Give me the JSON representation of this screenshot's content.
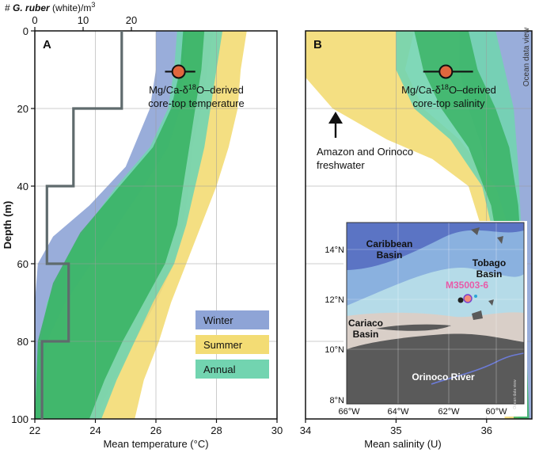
{
  "chart_data": [
    {
      "type": "area",
      "panel_label": "A",
      "xlabel": "Mean temperature (°C)",
      "ylabel": "Depth (m)",
      "top_axis_label": {
        "prefix": "# ",
        "italic": "G. ruber",
        "suffix": " (white)/m",
        "sup": "3"
      },
      "xlim": [
        22,
        30
      ],
      "ylim": [
        0,
        100
      ],
      "y_inverted": true,
      "grid": true,
      "x_ticks": [
        "22",
        "24",
        "26",
        "28",
        "30"
      ],
      "y_ticks": [
        "0",
        "20",
        "40",
        "60",
        "80",
        "100"
      ],
      "top_ticks": [
        "0",
        "10",
        "20"
      ],
      "top_lim": [
        0,
        20
      ],
      "annotation": {
        "line1": "Mg/Ca-δ18O–derived",
        "line1_parts": [
          "Mg/Ca-δ",
          "18",
          "O–derived"
        ],
        "line2": "core-top temperature"
      },
      "core_top_point": {
        "x": 26.75,
        "y": 10.5,
        "x_err": [
          26.3,
          27.3
        ]
      },
      "legend": {
        "placement": "bottom-right",
        "entries": [
          "Winter",
          "Summer",
          "Annual"
        ]
      },
      "series": [
        {
          "name": "Winter",
          "color": "#8ea4d6",
          "left": [
            [
              26.0,
              0
            ],
            [
              26.0,
              10
            ],
            [
              25.8,
              20
            ],
            [
              25.0,
              35
            ],
            [
              23.8,
              45
            ],
            [
              22.6,
              53
            ],
            [
              22.1,
              60
            ],
            [
              22.0,
              70
            ],
            [
              22.0,
              100
            ]
          ],
          "right": [
            [
              27.9,
              0
            ],
            [
              27.7,
              10
            ],
            [
              27.5,
              20
            ],
            [
              27.2,
              30
            ],
            [
              27.1,
              40
            ],
            [
              26.9,
              50
            ],
            [
              26.6,
              60
            ],
            [
              26.0,
              70
            ],
            [
              25.3,
              80
            ],
            [
              24.6,
              90
            ],
            [
              24.0,
              100
            ]
          ]
        },
        {
          "name": "Summer",
          "color": "#f3dc74",
          "left": [
            [
              27.0,
              0
            ],
            [
              26.9,
              10
            ],
            [
              26.8,
              20
            ],
            [
              26.4,
              30
            ],
            [
              25.6,
              40
            ],
            [
              24.3,
              55
            ],
            [
              23.0,
              70
            ],
            [
              22.4,
              80
            ],
            [
              22.2,
              90
            ],
            [
              22.1,
              100
            ]
          ],
          "right": [
            [
              29.0,
              0
            ],
            [
              28.8,
              10
            ],
            [
              28.7,
              20
            ],
            [
              28.4,
              30
            ],
            [
              28.0,
              40
            ],
            [
              27.5,
              50
            ],
            [
              27.0,
              60
            ],
            [
              26.5,
              70
            ],
            [
              26.1,
              80
            ],
            [
              25.6,
              90
            ],
            [
              25.3,
              100
            ]
          ]
        },
        {
          "name": "Annual",
          "color": "#72d4b0",
          "left": [
            [
              26.7,
              0
            ],
            [
              26.6,
              10
            ],
            [
              26.4,
              20
            ],
            [
              25.8,
              30
            ],
            [
              24.7,
              40
            ],
            [
              23.3,
              55
            ],
            [
              22.4,
              70
            ],
            [
              22.1,
              85
            ],
            [
              22.0,
              100
            ]
          ],
          "right": [
            [
              28.2,
              0
            ],
            [
              28.0,
              10
            ],
            [
              27.8,
              20
            ],
            [
              27.6,
              30
            ],
            [
              27.3,
              40
            ],
            [
              27.0,
              50
            ],
            [
              26.6,
              60
            ],
            [
              25.9,
              70
            ],
            [
              25.3,
              80
            ],
            [
              24.7,
              90
            ],
            [
              24.2,
              100
            ]
          ]
        },
        {
          "name": "",
          "color": "#36b160",
          "opacity": 0.85,
          "left": [
            [
              26.9,
              0
            ],
            [
              26.8,
              10
            ],
            [
              26.5,
              20
            ],
            [
              25.9,
              30
            ],
            [
              24.8,
              40
            ],
            [
              23.5,
              52
            ],
            [
              22.6,
              65
            ],
            [
              22.1,
              80
            ],
            [
              22.0,
              100
            ]
          ],
          "right": [
            [
              27.6,
              0
            ],
            [
              27.5,
              10
            ],
            [
              27.3,
              20
            ],
            [
              27.1,
              30
            ],
            [
              26.9,
              40
            ],
            [
              26.7,
              50
            ],
            [
              26.3,
              60
            ],
            [
              25.6,
              70
            ],
            [
              24.9,
              80
            ],
            [
              24.3,
              90
            ],
            [
              23.8,
              100
            ]
          ]
        }
      ],
      "abundance_step": {
        "color": "#5f6b6d",
        "points": [
          [
            18,
            0
          ],
          [
            18,
            20
          ],
          [
            8,
            20
          ],
          [
            8,
            40
          ],
          [
            2.5,
            40
          ],
          [
            2.5,
            60
          ],
          [
            7,
            60
          ],
          [
            7,
            80
          ],
          [
            1.5,
            80
          ],
          [
            1.5,
            100
          ]
        ]
      }
    },
    {
      "type": "area",
      "panel_label": "B",
      "xlabel": "Mean salinity (U)",
      "xlim": [
        34,
        36.5
      ],
      "ylim": [
        0,
        100
      ],
      "y_inverted": true,
      "grid": true,
      "x_ticks": [
        "34",
        "35",
        "36"
      ],
      "side_text": "Ocean data view",
      "annotation": {
        "line1": "Mg/Ca-δ18O–derived",
        "line1_parts": [
          "Mg/Ca-δ",
          "18",
          "O–derived"
        ],
        "line2": "core-top salinity"
      },
      "arrow_label": {
        "line1": "Amazon and Orinoco",
        "line2": "freshwater"
      },
      "core_top_point": {
        "x": 35.55,
        "y": 10.5,
        "x_err": [
          35.3,
          35.85
        ]
      },
      "series": [
        {
          "name": "Winter",
          "color": "#8ea4d6",
          "left": [
            [
              35.7,
              0
            ],
            [
              35.7,
              10
            ],
            [
              35.8,
              20
            ],
            [
              35.95,
              30
            ],
            [
              36.05,
              40
            ],
            [
              36.15,
              60
            ],
            [
              36.2,
              80
            ],
            [
              36.25,
              100
            ]
          ],
          "right": [
            [
              36.5,
              0
            ],
            [
              36.5,
              100
            ]
          ]
        },
        {
          "name": "Summer",
          "color": "#f3dc74",
          "left": [
            [
              34.0,
              0
            ],
            [
              34.0,
              12
            ],
            [
              34.3,
              20
            ],
            [
              34.9,
              28
            ],
            [
              35.4,
              33
            ],
            [
              35.8,
              40
            ],
            [
              36.0,
              55
            ],
            [
              36.1,
              75
            ],
            [
              36.2,
              100
            ]
          ],
          "right": [
            [
              35.2,
              0
            ],
            [
              35.1,
              10
            ],
            [
              35.3,
              20
            ],
            [
              35.7,
              28
            ],
            [
              36.1,
              40
            ],
            [
              36.3,
              55
            ],
            [
              36.4,
              75
            ],
            [
              36.45,
              100
            ]
          ]
        },
        {
          "name": "Annual",
          "color": "#72d4b0",
          "left": [
            [
              35.0,
              0
            ],
            [
              35.0,
              10
            ],
            [
              35.2,
              20
            ],
            [
              35.6,
              28
            ],
            [
              35.95,
              40
            ],
            [
              36.15,
              60
            ],
            [
              36.3,
              80
            ],
            [
              36.35,
              100
            ]
          ],
          "right": [
            [
              36.1,
              0
            ],
            [
              36.2,
              10
            ],
            [
              36.3,
              20
            ],
            [
              36.35,
              35
            ],
            [
              36.4,
              60
            ],
            [
              36.45,
              100
            ]
          ]
        },
        {
          "name": "",
          "color": "#36b160",
          "opacity": 0.8,
          "left": [
            [
              35.2,
              0
            ],
            [
              35.3,
              10
            ],
            [
              35.5,
              20
            ],
            [
              35.8,
              30
            ],
            [
              36.05,
              45
            ],
            [
              36.2,
              65
            ],
            [
              36.3,
              100
            ]
          ],
          "right": [
            [
              35.8,
              0
            ],
            [
              35.9,
              10
            ],
            [
              36.1,
              20
            ],
            [
              36.25,
              30
            ],
            [
              36.35,
              45
            ],
            [
              36.42,
              70
            ],
            [
              36.47,
              100
            ]
          ]
        }
      ],
      "map_inset": {
        "lon_labels": [
          "66°W",
          "64°W",
          "62°W",
          "60°W"
        ],
        "lat_labels": [
          "14°N",
          "12°N",
          "10°N",
          "8°N"
        ],
        "places": [
          "Caribbean Basin",
          "Tobago Basin",
          "Cariaco Basin",
          "Orinoco River"
        ],
        "place_lines": [
          [
            "Caribbean",
            "Basin"
          ],
          [
            "Tobago",
            "Basin"
          ],
          [
            "Cariaco",
            "Basin"
          ],
          [
            "Orinoco River"
          ]
        ],
        "station": "M35003-6",
        "watermark": "Ocean data view",
        "colors": {
          "deep": "#5b74c4",
          "mid": "#8fb8e2",
          "shallow": "#b5dbe8",
          "land": "#5a5a5a",
          "shelf": "#d9cfc8"
        }
      }
    }
  ]
}
